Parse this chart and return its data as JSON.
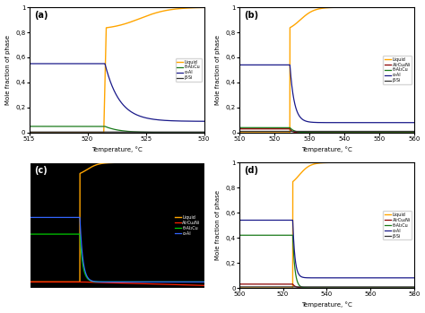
{
  "panel_a": {
    "xlim": [
      515,
      530
    ],
    "ylim": [
      0,
      1
    ],
    "xticks": [
      515,
      520,
      525,
      530
    ],
    "label": "(a)",
    "legend": [
      "Liquid",
      "θ-Al₂Cu",
      "α-Al",
      "β-Si"
    ],
    "colors": [
      "#FFA500",
      "#1a7a1a",
      "#1a1a8a",
      "#333333"
    ],
    "transition": 521.5,
    "alpha_al_flat": 0.55,
    "theta_flat": 0.05,
    "alpha_post": 0.09,
    "theta_post": 0.08,
    "liquid_jump": 0.82,
    "sharpness": 30
  },
  "panel_b": {
    "xlim": [
      510,
      560
    ],
    "ylim": [
      0,
      1
    ],
    "xticks": [
      510,
      520,
      530,
      540,
      550,
      560
    ],
    "label": "(b)",
    "legend": [
      "Liquid",
      "Al₇Cu₄Ni",
      "θ-Al₂Cu",
      "α-Al",
      "β-Si"
    ],
    "colors": [
      "#FFA500",
      "#8B0000",
      "#1a7a1a",
      "#1a1a8a",
      "#333333"
    ],
    "transition": 524.5,
    "alpha_al_flat": 0.54,
    "theta_flat": 0.04,
    "al7_flat": 0.03,
    "alpha_post": 0.08,
    "liquid_jump": 0.8,
    "sharpness": 30
  },
  "panel_c": {
    "xlim": [
      510,
      560
    ],
    "ylim": [
      -0.05,
      1
    ],
    "label": "(c)",
    "bg_color": "#000000",
    "legend": [
      "Liquid",
      "Al₇Cu₄Ni",
      "θ-Al₂Cu",
      "α-Al"
    ],
    "colors": [
      "#FFA500",
      "#FF2200",
      "#00CC00",
      "#3366FF"
    ],
    "red_line_color": "#FF2200",
    "transition": 524.5,
    "alpha_flat": 0.54,
    "theta_flat": 0.4,
    "liquid_jump": 0.88,
    "sharpness": 30
  },
  "panel_d": {
    "xlim": [
      500,
      580
    ],
    "ylim": [
      0,
      1
    ],
    "xticks": [
      500,
      520,
      540,
      560,
      580
    ],
    "label": "(d)",
    "legend": [
      "Liquid",
      "Al₇Cu₄Ni",
      "θ-Al₂Cu",
      "α-Al",
      "β-Si"
    ],
    "colors": [
      "#FFA500",
      "#8B0000",
      "#1a7a1a",
      "#1a1a8a",
      "#333333"
    ],
    "transition": 524.5,
    "alpha_al_flat": 0.54,
    "theta_flat": 0.42,
    "al7_flat": 0.03,
    "alpha_post": 0.08,
    "liquid_jump": 0.8,
    "sharpness": 30
  },
  "ylabel": "Mole fraction of phase",
  "xlabel": "Temperature, °C"
}
